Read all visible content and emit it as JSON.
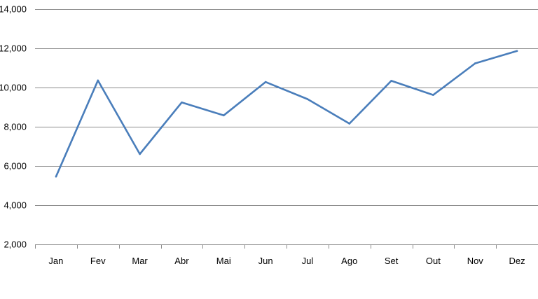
{
  "chart_data": {
    "type": "line",
    "title": "",
    "xlabel": "",
    "ylabel": "",
    "categories": [
      "Jan",
      "Fev",
      "Mar",
      "Abr",
      "Mai",
      "Jun",
      "Jul",
      "Ago",
      "Set",
      "Out",
      "Nov",
      "Dez"
    ],
    "series": [
      {
        "values": [
          5450,
          10350,
          6600,
          9230,
          8570,
          10270,
          9400,
          8150,
          10330,
          9610,
          11220,
          11850
        ],
        "color": "#4A7EBB"
      }
    ],
    "ylim": [
      2000,
      14000
    ],
    "yticks": [
      2000,
      4000,
      6000,
      8000,
      10000,
      12000,
      14000
    ],
    "ytick_labels": [
      "2,000",
      "4,000",
      "6,000",
      "8,000",
      "10,000",
      "12,000",
      "14,000"
    ],
    "grid": true,
    "legend": "none"
  }
}
